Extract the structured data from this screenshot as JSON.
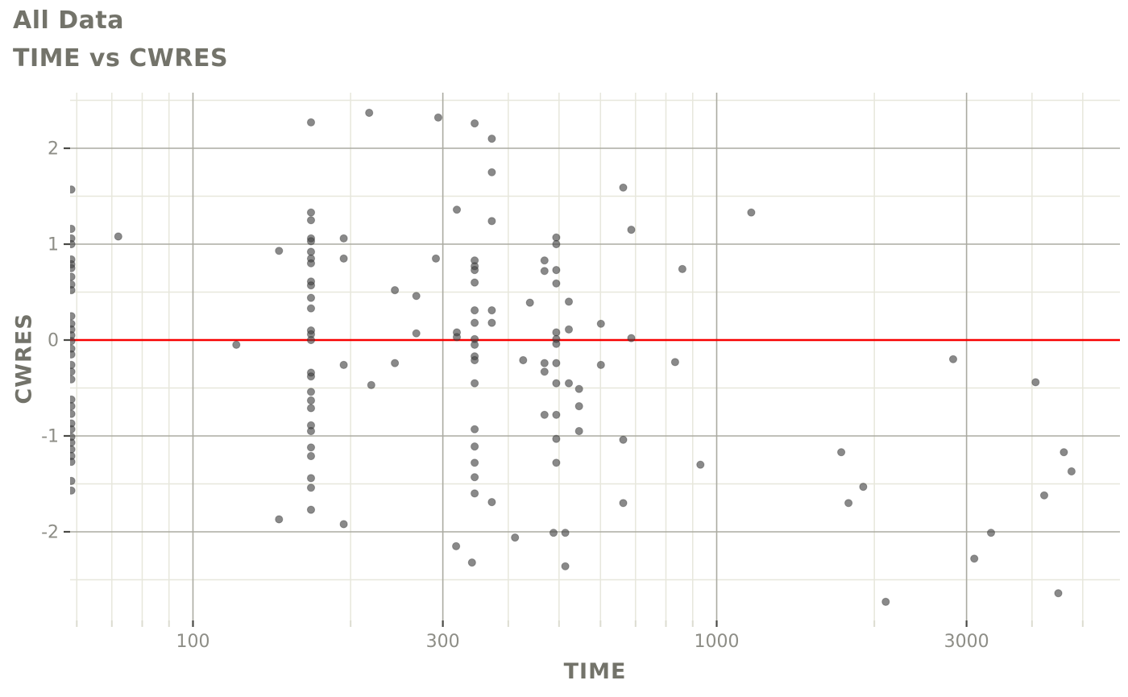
{
  "title": "All Data",
  "subtitle": "TIME vs CWRES",
  "x_axis": {
    "label": "TIME",
    "scale": "log10",
    "tick_labels": [
      "100",
      "300",
      "1000",
      "3000"
    ],
    "major_ticks": [
      100,
      300,
      1000,
      3000
    ],
    "minor_ticks": [
      60,
      70,
      80,
      90,
      200,
      400,
      500,
      600,
      700,
      800,
      900,
      2000,
      4000,
      5000
    ],
    "range": [
      58.6,
      5970
    ]
  },
  "y_axis": {
    "label": "CWRES",
    "tick_labels": [
      "2",
      "1",
      "0",
      "-1",
      "-2"
    ],
    "major_ticks": [
      2,
      1,
      0,
      -1,
      -2
    ],
    "minor_gridlines": [
      2.5,
      1.5,
      0.5,
      -0.5,
      -1.5,
      -2.5
    ],
    "range": [
      -2.92,
      2.58
    ]
  },
  "reference_line": {
    "y": 0,
    "color": "#f80000"
  },
  "colors": {
    "background": "#ffffff",
    "point_fill": "#404040",
    "point_stroke": "#1a1a1a",
    "grid_major": "#ababa2",
    "grid_minor": "#e7e7dc",
    "title_text": "#73736a",
    "axis_title_text": "#73736a",
    "tick_text": "#8d8d86",
    "tick_mark": "#4a4a46",
    "minor_tick_mark": "#dcdcd0",
    "reference_line": "#f80000"
  },
  "chart_data": {
    "type": "scatter",
    "title": "All Data",
    "subtitle": "TIME vs CWRES",
    "xlabel": "TIME",
    "ylabel": "CWRES",
    "x_scale": "log10",
    "xlim": [
      58.6,
      5970
    ],
    "ylim": [
      -2.92,
      2.58
    ],
    "grid": true,
    "legend": false,
    "reference_line_y": 0,
    "points": [
      [
        58.6,
        1.57
      ],
      [
        58.6,
        1.16
      ],
      [
        58.6,
        1.06
      ],
      [
        58.6,
        1.0
      ],
      [
        58.6,
        0.84
      ],
      [
        58.6,
        0.79
      ],
      [
        58.6,
        0.75
      ],
      [
        58.6,
        0.66
      ],
      [
        58.6,
        0.58
      ],
      [
        58.6,
        0.52
      ],
      [
        58.6,
        0.25
      ],
      [
        58.6,
        0.17
      ],
      [
        58.6,
        0.11
      ],
      [
        58.6,
        0.05
      ],
      [
        58.6,
        -0.01
      ],
      [
        58.6,
        -0.09
      ],
      [
        58.6,
        -0.15
      ],
      [
        58.6,
        -0.26
      ],
      [
        58.6,
        -0.33
      ],
      [
        58.6,
        -0.41
      ],
      [
        58.6,
        -0.62
      ],
      [
        58.6,
        -0.69
      ],
      [
        58.6,
        -0.77
      ],
      [
        58.6,
        -0.87
      ],
      [
        58.6,
        -0.93
      ],
      [
        58.6,
        -1.01
      ],
      [
        58.6,
        -1.07
      ],
      [
        58.6,
        -1.14
      ],
      [
        58.6,
        -1.21
      ],
      [
        58.6,
        -1.27
      ],
      [
        58.6,
        -1.47
      ],
      [
        58.6,
        -1.57
      ],
      [
        72,
        1.08
      ],
      [
        121,
        -0.05
      ],
      [
        146,
        0.93
      ],
      [
        146,
        -1.87
      ],
      [
        168,
        2.27
      ],
      [
        168,
        1.33
      ],
      [
        168,
        1.25
      ],
      [
        168,
        1.06
      ],
      [
        168,
        1.03
      ],
      [
        168,
        0.92
      ],
      [
        168,
        0.85
      ],
      [
        168,
        0.8
      ],
      [
        168,
        0.61
      ],
      [
        168,
        0.57
      ],
      [
        168,
        0.44
      ],
      [
        168,
        0.33
      ],
      [
        168,
        0.1
      ],
      [
        168,
        0.06
      ],
      [
        168,
        0.0
      ],
      [
        168,
        -0.34
      ],
      [
        168,
        -0.38
      ],
      [
        168,
        -0.54
      ],
      [
        168,
        -0.63
      ],
      [
        168,
        -0.71
      ],
      [
        168,
        -0.89
      ],
      [
        168,
        -0.95
      ],
      [
        168,
        -1.12
      ],
      [
        168,
        -1.21
      ],
      [
        168,
        -1.44
      ],
      [
        168,
        -1.54
      ],
      [
        168,
        -1.77
      ],
      [
        194,
        1.06
      ],
      [
        194,
        0.85
      ],
      [
        194,
        -0.26
      ],
      [
        194,
        -1.92
      ],
      [
        217,
        2.37
      ],
      [
        219,
        -0.47
      ],
      [
        243,
        0.52
      ],
      [
        243,
        -0.24
      ],
      [
        267,
        0.46
      ],
      [
        267,
        0.07
      ],
      [
        291,
        0.85
      ],
      [
        294,
        2.32
      ],
      [
        318,
        -2.15
      ],
      [
        319,
        1.36
      ],
      [
        319,
        0.08
      ],
      [
        319,
        0.03
      ],
      [
        341,
        -2.32
      ],
      [
        345,
        2.26
      ],
      [
        345,
        0.83
      ],
      [
        345,
        0.77
      ],
      [
        345,
        0.73
      ],
      [
        345,
        0.6
      ],
      [
        345,
        0.31
      ],
      [
        345,
        0.18
      ],
      [
        345,
        0.01
      ],
      [
        345,
        -0.05
      ],
      [
        345,
        -0.17
      ],
      [
        345,
        -0.21
      ],
      [
        345,
        -0.45
      ],
      [
        345,
        -0.93
      ],
      [
        345,
        -1.11
      ],
      [
        345,
        -1.28
      ],
      [
        345,
        -1.43
      ],
      [
        345,
        -1.6
      ],
      [
        372,
        2.1
      ],
      [
        372,
        1.75
      ],
      [
        372,
        1.24
      ],
      [
        372,
        0.31
      ],
      [
        372,
        0.18
      ],
      [
        372,
        -1.69
      ],
      [
        412,
        -2.06
      ],
      [
        427,
        -0.21
      ],
      [
        440,
        0.39
      ],
      [
        469,
        0.83
      ],
      [
        469,
        0.72
      ],
      [
        469,
        -0.24
      ],
      [
        469,
        -0.33
      ],
      [
        469,
        -0.78
      ],
      [
        488,
        -2.01
      ],
      [
        494,
        1.07
      ],
      [
        494,
        1.0
      ],
      [
        494,
        0.73
      ],
      [
        494,
        0.59
      ],
      [
        494,
        0.08
      ],
      [
        494,
        0.01
      ],
      [
        494,
        -0.04
      ],
      [
        494,
        -0.24
      ],
      [
        494,
        -0.45
      ],
      [
        494,
        -0.78
      ],
      [
        494,
        -1.03
      ],
      [
        494,
        -1.28
      ],
      [
        514,
        -2.01
      ],
      [
        514,
        -2.36
      ],
      [
        522,
        0.4
      ],
      [
        522,
        0.11
      ],
      [
        522,
        -0.45
      ],
      [
        546,
        -0.51
      ],
      [
        546,
        -0.69
      ],
      [
        546,
        -0.95
      ],
      [
        601,
        0.17
      ],
      [
        601,
        -0.26
      ],
      [
        663,
        1.59
      ],
      [
        663,
        -1.04
      ],
      [
        663,
        -1.7
      ],
      [
        687,
        1.15
      ],
      [
        687,
        0.02
      ],
      [
        833,
        -0.23
      ],
      [
        860,
        0.74
      ],
      [
        931,
        -1.3
      ],
      [
        1164,
        1.33
      ],
      [
        1729,
        -1.17
      ],
      [
        1785,
        -1.7
      ],
      [
        1905,
        -1.53
      ],
      [
        2103,
        -2.73
      ],
      [
        2828,
        -0.2
      ],
      [
        3104,
        -2.28
      ],
      [
        3341,
        -2.01
      ],
      [
        4063,
        -0.44
      ],
      [
        4221,
        -1.62
      ],
      [
        4490,
        -2.64
      ],
      [
        4601,
        -1.17
      ],
      [
        4759,
        -1.37
      ]
    ]
  }
}
